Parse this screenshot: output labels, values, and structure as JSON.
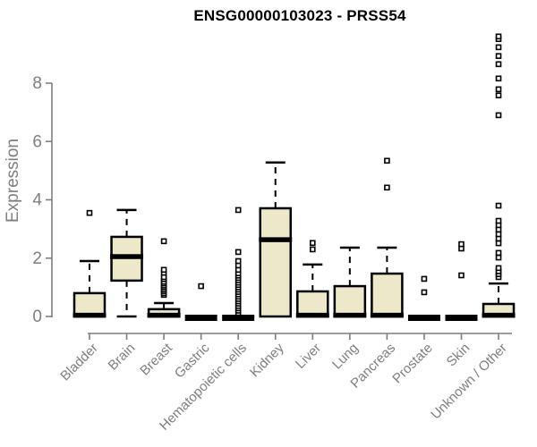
{
  "page": {
    "title": "ENSG00000103023 - PRSS54",
    "ylabel": "Expression"
  },
  "chart_data": {
    "type": "boxplot",
    "title": "ENSG00000103023 - PRSS54",
    "xlabel": "",
    "ylabel": "Expression",
    "ylim": [
      0,
      9.8
    ],
    "yticks": [
      0,
      2,
      4,
      6,
      8
    ],
    "grid": false,
    "legend": "none",
    "categories": [
      "Bladder",
      "Brain",
      "Breast",
      "Gastric",
      "Hematopoietic cells",
      "Kidney",
      "Liver",
      "Lung",
      "Pancreas",
      "Prostate",
      "Skin",
      "Unknown / Other"
    ],
    "series": [
      {
        "name": "Bladder",
        "q1": 0,
        "median": 0.05,
        "q3": 0.8,
        "whisker_low": 0,
        "whisker_high": 1.9,
        "outliers": [
          3.55
        ]
      },
      {
        "name": "Brain",
        "q1": 1.23,
        "median": 2.06,
        "q3": 2.73,
        "whisker_low": 0,
        "whisker_high": 3.65,
        "outliers": []
      },
      {
        "name": "Breast",
        "q1": 0,
        "median": 0.05,
        "q3": 0.25,
        "whisker_low": 0,
        "whisker_high": 0.46,
        "outliers": [
          0.74,
          0.8,
          0.87,
          0.93,
          1.0,
          1.06,
          1.13,
          1.19,
          1.28,
          1.35,
          1.5,
          1.6,
          2.58
        ]
      },
      {
        "name": "Gastric",
        "q1": 0,
        "median": 0,
        "q3": 0,
        "whisker_low": 0,
        "whisker_high": 0,
        "outliers": [
          1.04
        ]
      },
      {
        "name": "Hematopoietic cells",
        "q1": 0,
        "median": 0,
        "q3": 0,
        "whisker_low": 0,
        "whisker_high": 0,
        "outliers": [
          0.12,
          0.2,
          0.28,
          0.36,
          0.44,
          0.52,
          0.6,
          0.68,
          0.76,
          0.84,
          0.92,
          1.0,
          1.08,
          1.16,
          1.24,
          1.32,
          1.4,
          1.48,
          1.6,
          1.75,
          1.9,
          2.21,
          3.65
        ]
      },
      {
        "name": "Kidney",
        "q1": 0,
        "median": 2.64,
        "q3": 3.71,
        "whisker_low": 0,
        "whisker_high": 5.28,
        "outliers": []
      },
      {
        "name": "Liver",
        "q1": 0,
        "median": 0.05,
        "q3": 0.86,
        "whisker_low": 0,
        "whisker_high": 1.78,
        "outliers": [
          2.3,
          2.52
        ]
      },
      {
        "name": "Lung",
        "q1": 0,
        "median": 0.05,
        "q3": 1.04,
        "whisker_low": 0,
        "whisker_high": 2.36,
        "outliers": []
      },
      {
        "name": "Pancreas",
        "q1": 0,
        "median": 0.05,
        "q3": 1.47,
        "whisker_low": 0,
        "whisker_high": 2.36,
        "outliers": [
          4.42,
          5.34
        ]
      },
      {
        "name": "Prostate",
        "q1": 0,
        "median": 0,
        "q3": 0,
        "whisker_low": 0,
        "whisker_high": 0,
        "outliers": [
          0.83,
          1.29
        ]
      },
      {
        "name": "Skin",
        "q1": 0,
        "median": 0,
        "q3": 0,
        "whisker_low": 0,
        "whisker_high": 0,
        "outliers": [
          1.41,
          2.33,
          2.48
        ]
      },
      {
        "name": "Unknown / Other",
        "q1": 0,
        "median": 0.05,
        "q3": 0.43,
        "whisker_low": 0,
        "whisker_high": 1.13,
        "outliers": [
          1.35,
          1.45,
          1.55,
          1.66,
          2.02,
          2.18,
          2.51,
          2.67,
          2.82,
          2.98,
          3.13,
          3.28,
          3.8,
          6.9,
          7.58,
          7.79,
          8.16,
          8.65,
          8.93,
          9.23,
          9.51,
          9.6
        ]
      }
    ],
    "colors": {
      "box_fill": "#EDE8C9",
      "box_stroke": "#000000",
      "median": "#000000",
      "outlier_stroke": "#000000",
      "axis": "#7e7e7e",
      "tick_label": "#7e7e7e",
      "title": "#000000",
      "background": "#ffffff"
    }
  }
}
